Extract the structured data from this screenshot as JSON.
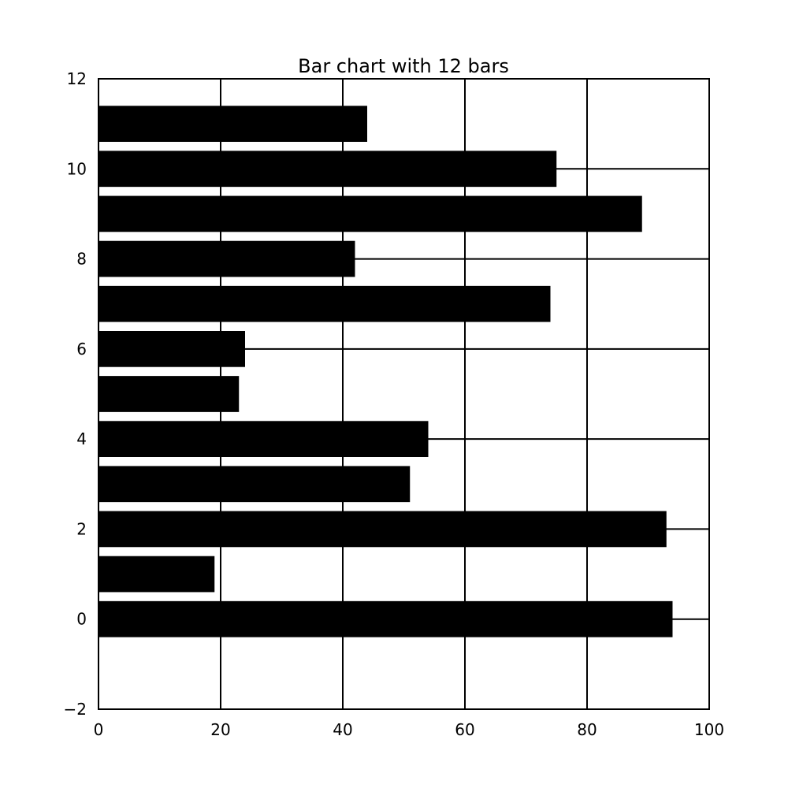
{
  "chart_data": {
    "type": "bar",
    "orientation": "horizontal",
    "title": "Bar chart with 12 bars",
    "xlabel": "",
    "ylabel": "",
    "categories": [
      0,
      1,
      2,
      3,
      4,
      5,
      6,
      7,
      8,
      9,
      10,
      11
    ],
    "values": [
      94,
      19,
      93,
      51,
      54,
      23,
      24,
      74,
      42,
      89,
      75,
      44
    ],
    "xlim": [
      0,
      100
    ],
    "ylim": [
      -2,
      12
    ],
    "x_ticks": [
      0,
      20,
      40,
      60,
      80,
      100
    ],
    "x_tick_labels": [
      "0",
      "20",
      "40",
      "60",
      "80",
      "100"
    ],
    "y_ticks": [
      -2,
      0,
      2,
      4,
      6,
      8,
      10,
      12
    ],
    "y_tick_labels": [
      "−2",
      "0",
      "2",
      "4",
      "6",
      "8",
      "10",
      "12"
    ],
    "grid": true,
    "bar_color": "#000000",
    "grid_color": "#000000"
  }
}
